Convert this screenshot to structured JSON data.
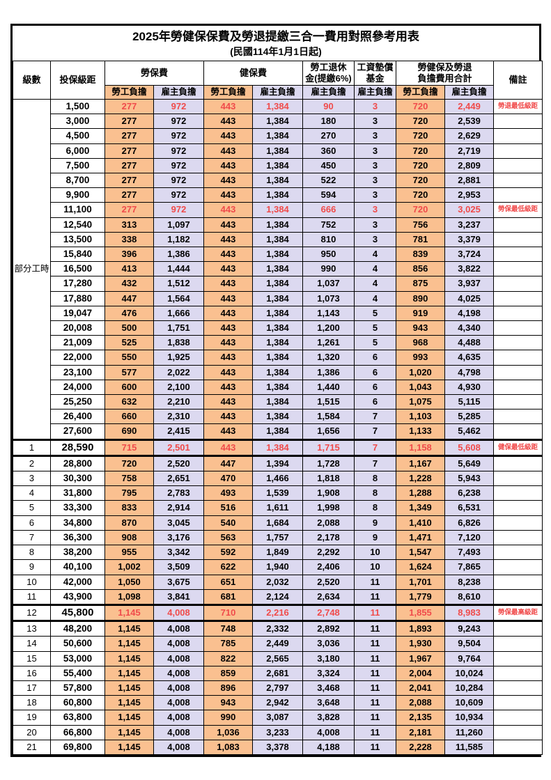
{
  "title": "2025年勞健保保費及勞退提繳三合一費用對照參考用表",
  "subtitle": "(民國114年1月1日起)",
  "header": {
    "level": "級數",
    "bracket": "投保級距",
    "labor_group": "勞保費",
    "health_group": "健保費",
    "pension_line1": "勞工退休",
    "pension_line2": "金(提繳6%)",
    "wage_fund_line1": "工資墊償",
    "wage_fund_line2": "基金",
    "total_line1": "勞健保及勞退",
    "total_line2": "負擔費用合計",
    "remark": "備註",
    "employee": "勞工負擔",
    "employer": "雇主負擔"
  },
  "group_label": "部分工時",
  "group_rowspan": 23,
  "colors": {
    "employee_bg": "#FAC090",
    "employer_bg": "#DCD9F0",
    "highlight_text": "#F04B4B",
    "border": "#000000"
  },
  "row_fields": [
    "level",
    "bracket",
    "labor_employee",
    "labor_employer",
    "health_employee",
    "health_employer",
    "pension_employer",
    "wage_fund_employer",
    "total_employee",
    "total_employer",
    "remark",
    "highlight",
    "thick_border"
  ],
  "rows": [
    [
      "",
      "1,500",
      "277",
      "972",
      "443",
      "1,384",
      "90",
      "3",
      "720",
      "2,449",
      "勞退最低級距",
      1,
      0
    ],
    [
      "",
      "3,000",
      "277",
      "972",
      "443",
      "1,384",
      "180",
      "3",
      "720",
      "2,539",
      "",
      0,
      0
    ],
    [
      "",
      "4,500",
      "277",
      "972",
      "443",
      "1,384",
      "270",
      "3",
      "720",
      "2,629",
      "",
      0,
      0
    ],
    [
      "",
      "6,000",
      "277",
      "972",
      "443",
      "1,384",
      "360",
      "3",
      "720",
      "2,719",
      "",
      0,
      0
    ],
    [
      "",
      "7,500",
      "277",
      "972",
      "443",
      "1,384",
      "450",
      "3",
      "720",
      "2,809",
      "",
      0,
      0
    ],
    [
      "",
      "8,700",
      "277",
      "972",
      "443",
      "1,384",
      "522",
      "3",
      "720",
      "2,881",
      "",
      0,
      0
    ],
    [
      "",
      "9,900",
      "277",
      "972",
      "443",
      "1,384",
      "594",
      "3",
      "720",
      "2,953",
      "",
      0,
      0
    ],
    [
      "",
      "11,100",
      "277",
      "972",
      "443",
      "1,384",
      "666",
      "3",
      "720",
      "3,025",
      "勞保最低級距",
      1,
      0
    ],
    [
      "",
      "12,540",
      "313",
      "1,097",
      "443",
      "1,384",
      "752",
      "3",
      "756",
      "3,237",
      "",
      0,
      0
    ],
    [
      "",
      "13,500",
      "338",
      "1,182",
      "443",
      "1,384",
      "810",
      "3",
      "781",
      "3,379",
      "",
      0,
      0
    ],
    [
      "",
      "15,840",
      "396",
      "1,386",
      "443",
      "1,384",
      "950",
      "4",
      "839",
      "3,724",
      "",
      0,
      0
    ],
    [
      "",
      "16,500",
      "413",
      "1,444",
      "443",
      "1,384",
      "990",
      "4",
      "856",
      "3,822",
      "",
      0,
      0
    ],
    [
      "",
      "17,280",
      "432",
      "1,512",
      "443",
      "1,384",
      "1,037",
      "4",
      "875",
      "3,937",
      "",
      0,
      0
    ],
    [
      "",
      "17,880",
      "447",
      "1,564",
      "443",
      "1,384",
      "1,073",
      "4",
      "890",
      "4,025",
      "",
      0,
      0
    ],
    [
      "",
      "19,047",
      "476",
      "1,666",
      "443",
      "1,384",
      "1,143",
      "5",
      "919",
      "4,198",
      "",
      0,
      0
    ],
    [
      "",
      "20,008",
      "500",
      "1,751",
      "443",
      "1,384",
      "1,200",
      "5",
      "943",
      "4,340",
      "",
      0,
      0
    ],
    [
      "",
      "21,009",
      "525",
      "1,838",
      "443",
      "1,384",
      "1,261",
      "5",
      "968",
      "4,488",
      "",
      0,
      0
    ],
    [
      "",
      "22,000",
      "550",
      "1,925",
      "443",
      "1,384",
      "1,320",
      "6",
      "993",
      "4,635",
      "",
      0,
      0
    ],
    [
      "",
      "23,100",
      "577",
      "2,022",
      "443",
      "1,384",
      "1,386",
      "6",
      "1,020",
      "4,798",
      "",
      0,
      0
    ],
    [
      "",
      "24,000",
      "600",
      "2,100",
      "443",
      "1,384",
      "1,440",
      "6",
      "1,043",
      "4,930",
      "",
      0,
      0
    ],
    [
      "",
      "25,250",
      "632",
      "2,210",
      "443",
      "1,384",
      "1,515",
      "6",
      "1,075",
      "5,115",
      "",
      0,
      0
    ],
    [
      "",
      "26,400",
      "660",
      "2,310",
      "443",
      "1,384",
      "1,584",
      "7",
      "1,103",
      "5,285",
      "",
      0,
      0
    ],
    [
      "",
      "27,600",
      "690",
      "2,415",
      "443",
      "1,384",
      "1,656",
      "7",
      "1,133",
      "5,462",
      "",
      0,
      0
    ],
    [
      "1",
      "28,590",
      "715",
      "2,501",
      "443",
      "1,384",
      "1,715",
      "7",
      "1,158",
      "5,608",
      "健保最低級距",
      1,
      1
    ],
    [
      "2",
      "28,800",
      "720",
      "2,520",
      "447",
      "1,394",
      "1,728",
      "7",
      "1,167",
      "5,649",
      "",
      0,
      0
    ],
    [
      "3",
      "30,300",
      "758",
      "2,651",
      "470",
      "1,466",
      "1,818",
      "8",
      "1,228",
      "5,943",
      "",
      0,
      0
    ],
    [
      "4",
      "31,800",
      "795",
      "2,783",
      "493",
      "1,539",
      "1,908",
      "8",
      "1,288",
      "6,238",
      "",
      0,
      0
    ],
    [
      "5",
      "33,300",
      "833",
      "2,914",
      "516",
      "1,611",
      "1,998",
      "8",
      "1,349",
      "6,531",
      "",
      0,
      0
    ],
    [
      "6",
      "34,800",
      "870",
      "3,045",
      "540",
      "1,684",
      "2,088",
      "9",
      "1,410",
      "6,826",
      "",
      0,
      0
    ],
    [
      "7",
      "36,300",
      "908",
      "3,176",
      "563",
      "1,757",
      "2,178",
      "9",
      "1,471",
      "7,120",
      "",
      0,
      0
    ],
    [
      "8",
      "38,200",
      "955",
      "3,342",
      "592",
      "1,849",
      "2,292",
      "10",
      "1,547",
      "7,493",
      "",
      0,
      0
    ],
    [
      "9",
      "40,100",
      "1,002",
      "3,509",
      "622",
      "1,940",
      "2,406",
      "10",
      "1,624",
      "7,865",
      "",
      0,
      0
    ],
    [
      "10",
      "42,000",
      "1,050",
      "3,675",
      "651",
      "2,032",
      "2,520",
      "11",
      "1,701",
      "8,238",
      "",
      0,
      0
    ],
    [
      "11",
      "43,900",
      "1,098",
      "3,841",
      "681",
      "2,124",
      "2,634",
      "11",
      "1,779",
      "8,610",
      "",
      0,
      0
    ],
    [
      "12",
      "45,800",
      "1,145",
      "4,008",
      "710",
      "2,216",
      "2,748",
      "11",
      "1,855",
      "8,983",
      "勞保最高級距",
      1,
      1
    ],
    [
      "13",
      "48,200",
      "1,145",
      "4,008",
      "748",
      "2,332",
      "2,892",
      "11",
      "1,893",
      "9,243",
      "",
      0,
      0
    ],
    [
      "14",
      "50,600",
      "1,145",
      "4,008",
      "785",
      "2,449",
      "3,036",
      "11",
      "1,930",
      "9,504",
      "",
      0,
      0
    ],
    [
      "15",
      "53,000",
      "1,145",
      "4,008",
      "822",
      "2,565",
      "3,180",
      "11",
      "1,967",
      "9,764",
      "",
      0,
      0
    ],
    [
      "16",
      "55,400",
      "1,145",
      "4,008",
      "859",
      "2,681",
      "3,324",
      "11",
      "2,004",
      "10,024",
      "",
      0,
      0
    ],
    [
      "17",
      "57,800",
      "1,145",
      "4,008",
      "896",
      "2,797",
      "3,468",
      "11",
      "2,041",
      "10,284",
      "",
      0,
      0
    ],
    [
      "18",
      "60,800",
      "1,145",
      "4,008",
      "943",
      "2,942",
      "3,648",
      "11",
      "2,088",
      "10,609",
      "",
      0,
      0
    ],
    [
      "19",
      "63,800",
      "1,145",
      "4,008",
      "990",
      "3,087",
      "3,828",
      "11",
      "2,135",
      "10,934",
      "",
      0,
      0
    ],
    [
      "20",
      "66,800",
      "1,145",
      "4,008",
      "1,036",
      "3,233",
      "4,008",
      "11",
      "2,181",
      "11,260",
      "",
      0,
      0
    ],
    [
      "21",
      "69,800",
      "1,145",
      "4,008",
      "1,083",
      "3,378",
      "4,188",
      "11",
      "2,228",
      "11,585",
      "",
      0,
      0
    ]
  ]
}
